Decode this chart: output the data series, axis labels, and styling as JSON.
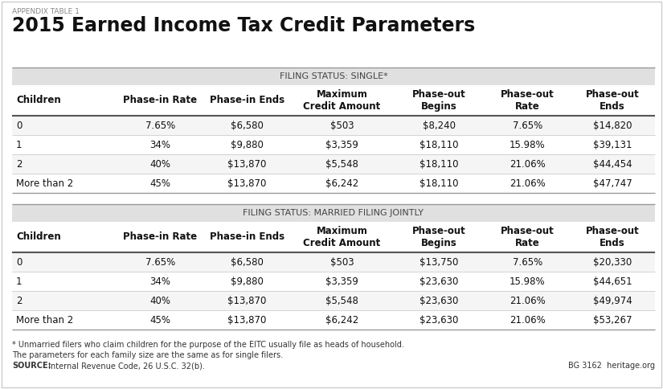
{
  "appendix_label": "APPENDIX TABLE 1",
  "title": "2015 Earned Income Tax Credit Parameters",
  "single_header": "FILING STATUS: SINGLE*",
  "married_header": "FILING STATUS: MARRIED FILING JOINTLY",
  "col_headers": [
    "Children",
    "Phase-in Rate",
    "Phase-in Ends",
    "Maximum\nCredit Amount",
    "Phase-out\nBegins",
    "Phase-out\nRate",
    "Phase-out\nEnds"
  ],
  "single_data": [
    [
      "0",
      "7.65%",
      "$6,580",
      "$503",
      "$8,240",
      "7.65%",
      "$14,820"
    ],
    [
      "1",
      "34%",
      "$9,880",
      "$3,359",
      "$18,110",
      "15.98%",
      "$39,131"
    ],
    [
      "2",
      "40%",
      "$13,870",
      "$5,548",
      "$18,110",
      "21.06%",
      "$44,454"
    ],
    [
      "More than 2",
      "45%",
      "$13,870",
      "$6,242",
      "$18,110",
      "21.06%",
      "$47,747"
    ]
  ],
  "married_data": [
    [
      "0",
      "7.65%",
      "$6,580",
      "$503",
      "$13,750",
      "7.65%",
      "$20,330"
    ],
    [
      "1",
      "34%",
      "$9,880",
      "$3,359",
      "$23,630",
      "15.98%",
      "$44,651"
    ],
    [
      "2",
      "40%",
      "$13,870",
      "$5,548",
      "$23,630",
      "21.06%",
      "$49,974"
    ],
    [
      "More than 2",
      "45%",
      "$13,870",
      "$6,242",
      "$23,630",
      "21.06%",
      "$53,267"
    ]
  ],
  "footnote1": "* Unmarried filers who claim children for the purpose of the EITC usually file as heads of household.",
  "footnote2": "The parameters for each family size are the same as for single filers.",
  "source_bold": "SOURCE:",
  "source_rest": " Internal Revenue Code, 26 U.S.C. 32(b).",
  "bg_color": "#ffffff",
  "section_header_bg": "#e0e0e0",
  "section_header_color": "#444444",
  "col_header_color": "#111111",
  "row_even_bg": "#f5f5f5",
  "row_odd_bg": "#ffffff",
  "divider_color": "#555555",
  "row_line_color": "#cccccc",
  "border_color": "#999999",
  "footnote_color": "#333333",
  "heritage_right": "BG 3162  heritage.org"
}
